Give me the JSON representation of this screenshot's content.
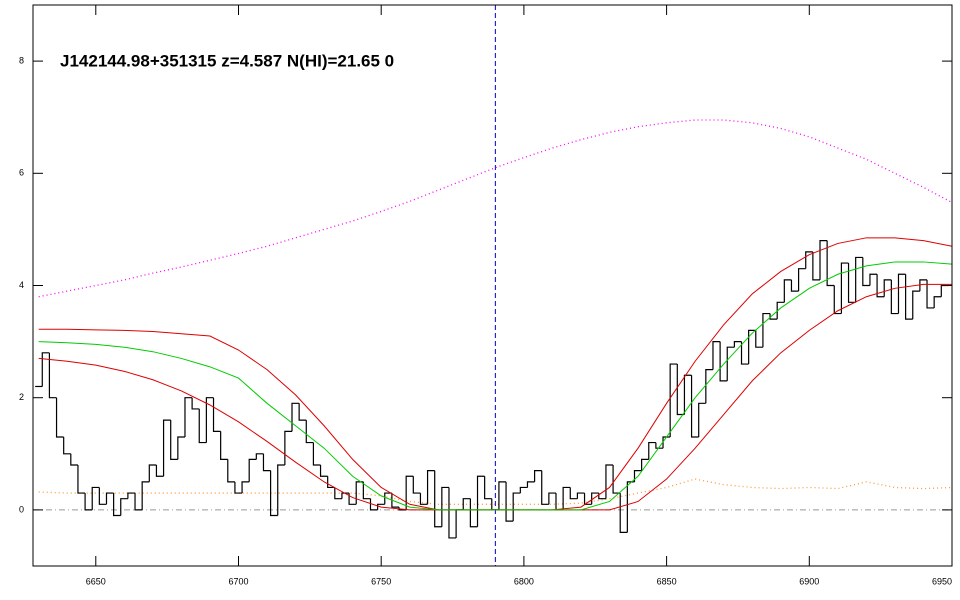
{
  "chart_data": {
    "type": "line",
    "title": "J142144.98+351315 z=4.587 N(HI)=21.65 0",
    "xlim": [
      6628,
      6950
    ],
    "ylim": [
      -1,
      9
    ],
    "xticks": [
      6650,
      6700,
      6750,
      6800,
      6850,
      6900,
      6950
    ],
    "yticks": [
      0,
      2,
      4,
      6,
      8
    ],
    "reference_lines": [
      {
        "axis": "y",
        "value": 0,
        "color": "#999999",
        "style": "dashdot"
      },
      {
        "axis": "x",
        "value": 6790,
        "color": "#0000cc",
        "style": "dashed"
      }
    ],
    "series": [
      {
        "color": "#ff00ff",
        "style": "dotted",
        "x": [
          6630,
          6640,
          6650,
          6660,
          6670,
          6680,
          6690,
          6700,
          6710,
          6720,
          6730,
          6740,
          6750,
          6760,
          6770,
          6780,
          6790,
          6800,
          6810,
          6820,
          6830,
          6840,
          6850,
          6860,
          6870,
          6880,
          6890,
          6900,
          6910,
          6920,
          6930,
          6940,
          6950
        ],
        "values": [
          3.8,
          3.9,
          4.0,
          4.1,
          4.22,
          4.33,
          4.45,
          4.57,
          4.7,
          4.85,
          5.0,
          5.15,
          5.32,
          5.5,
          5.7,
          5.9,
          6.1,
          6.28,
          6.45,
          6.6,
          6.73,
          6.83,
          6.9,
          6.95,
          6.95,
          6.9,
          6.8,
          6.65,
          6.45,
          6.25,
          6.0,
          5.75,
          5.48
        ]
      },
      {
        "color": "#ff9933",
        "style": "dotted",
        "x": [
          6630,
          6640,
          6650,
          6660,
          6670,
          6680,
          6690,
          6700,
          6710,
          6720,
          6730,
          6740,
          6750,
          6760,
          6770,
          6780,
          6790,
          6800,
          6810,
          6820,
          6830,
          6840,
          6850,
          6860,
          6870,
          6880,
          6890,
          6900,
          6910,
          6920,
          6930,
          6940,
          6950
        ],
        "values": [
          0.32,
          0.3,
          0.3,
          0.3,
          0.3,
          0.3,
          0.3,
          0.3,
          0.3,
          0.3,
          0.3,
          0.3,
          0.25,
          0.15,
          0.1,
          0.1,
          0.1,
          0.1,
          0.1,
          0.12,
          0.2,
          0.3,
          0.4,
          0.55,
          0.45,
          0.4,
          0.38,
          0.4,
          0.38,
          0.5,
          0.4,
          0.38,
          0.4
        ]
      },
      {
        "color": "#000000",
        "style": "step",
        "x": [
          6630,
          6632.5,
          6635,
          6637.5,
          6640,
          6642.5,
          6645,
          6647.5,
          6650,
          6652.5,
          6655,
          6657.5,
          6660,
          6662.5,
          6665,
          6667.5,
          6670,
          6672.5,
          6675,
          6677.5,
          6680,
          6682.5,
          6685,
          6687.5,
          6690,
          6692.5,
          6695,
          6697.5,
          6700,
          6702.5,
          6705,
          6707.5,
          6710,
          6712.5,
          6715,
          6717.5,
          6720,
          6722.5,
          6725,
          6727.5,
          6730,
          6732.5,
          6735,
          6737.5,
          6740,
          6742.5,
          6745,
          6747.5,
          6750,
          6752.5,
          6755,
          6757.5,
          6760,
          6762.5,
          6765,
          6767.5,
          6770,
          6772.5,
          6775,
          6777.5,
          6780,
          6782.5,
          6785,
          6787.5,
          6790,
          6792.5,
          6795,
          6797.5,
          6800,
          6802.5,
          6805,
          6807.5,
          6810,
          6812.5,
          6815,
          6817.5,
          6820,
          6822.5,
          6825,
          6827.5,
          6830,
          6832.5,
          6835,
          6837.5,
          6840,
          6842.5,
          6845,
          6847.5,
          6850,
          6852.5,
          6855,
          6857.5,
          6860,
          6862.5,
          6865,
          6867.5,
          6870,
          6872.5,
          6875,
          6877.5,
          6880,
          6882.5,
          6885,
          6887.5,
          6890,
          6892.5,
          6895,
          6897.5,
          6900,
          6902.5,
          6905,
          6907.5,
          6910,
          6912.5,
          6915,
          6917.5,
          6920,
          6922.5,
          6925,
          6927.5,
          6930,
          6932.5,
          6935,
          6937.5,
          6940,
          6942.5,
          6945,
          6947.5
        ],
        "values": [
          2.2,
          2.8,
          2.0,
          1.3,
          1.0,
          0.8,
          0.3,
          0.0,
          0.4,
          0.1,
          0.3,
          -0.1,
          0.2,
          0.3,
          0.0,
          0.5,
          0.8,
          0.6,
          1.6,
          0.9,
          1.3,
          2.0,
          1.8,
          1.2,
          2.0,
          1.4,
          0.9,
          0.5,
          0.3,
          0.5,
          0.9,
          1.0,
          0.7,
          -0.1,
          0.8,
          1.4,
          1.9,
          1.6,
          1.2,
          0.8,
          0.6,
          0.4,
          0.2,
          0.3,
          0.1,
          0.5,
          0.2,
          0.0,
          0.1,
          0.3,
          0.05,
          0.0,
          0.6,
          0.3,
          0.1,
          0.7,
          -0.3,
          0.4,
          -0.5,
          0.0,
          0.2,
          -0.3,
          0.6,
          0.2,
          0.0,
          0.5,
          -0.2,
          0.3,
          0.4,
          0.5,
          0.7,
          0.1,
          0.3,
          0.0,
          0.4,
          0.2,
          0.3,
          0.1,
          0.3,
          0.2,
          0.8,
          0.3,
          -0.4,
          0.5,
          0.7,
          0.9,
          1.2,
          1.1,
          1.3,
          2.6,
          1.7,
          2.4,
          1.3,
          1.9,
          2.5,
          3.0,
          2.3,
          2.9,
          3.0,
          2.6,
          3.2,
          2.9,
          3.5,
          3.4,
          3.7,
          4.1,
          3.9,
          4.3,
          4.6,
          4.1,
          4.8,
          4.0,
          3.5,
          4.4,
          3.7,
          4.5,
          4.0,
          4.2,
          3.8,
          4.1,
          3.5,
          4.2,
          3.4,
          3.9,
          4.1,
          3.6,
          3.8,
          4.0
        ]
      },
      {
        "color": "#dd0000",
        "style": "solid",
        "x": [
          6630,
          6640,
          6650,
          6660,
          6670,
          6680,
          6690,
          6700,
          6710,
          6720,
          6730,
          6740,
          6750,
          6760,
          6770,
          6780,
          6790,
          6800,
          6810,
          6820,
          6830,
          6840,
          6850,
          6860,
          6870,
          6880,
          6890,
          6900,
          6910,
          6920,
          6930,
          6940,
          6950
        ],
        "values": [
          3.22,
          3.22,
          3.21,
          3.2,
          3.18,
          3.14,
          3.1,
          2.85,
          2.5,
          2.05,
          1.5,
          0.9,
          0.4,
          0.1,
          0.0,
          0.0,
          0.0,
          0.0,
          0.0,
          0.05,
          0.4,
          1.1,
          1.9,
          2.65,
          3.3,
          3.85,
          4.25,
          4.55,
          4.75,
          4.85,
          4.85,
          4.8,
          4.7
        ]
      },
      {
        "color": "#dd0000",
        "style": "solid",
        "x": [
          6630,
          6640,
          6650,
          6660,
          6670,
          6680,
          6690,
          6700,
          6710,
          6720,
          6730,
          6740,
          6750,
          6760,
          6770,
          6780,
          6790,
          6800,
          6810,
          6820,
          6830,
          6840,
          6850,
          6860,
          6870,
          6880,
          6890,
          6900,
          6910,
          6920,
          6930,
          6940,
          6950
        ],
        "values": [
          2.7,
          2.65,
          2.58,
          2.47,
          2.32,
          2.12,
          1.87,
          1.57,
          1.22,
          0.85,
          0.5,
          0.22,
          0.05,
          0.0,
          0.0,
          0.0,
          0.0,
          0.0,
          0.0,
          0.0,
          0.0,
          0.15,
          0.55,
          1.1,
          1.7,
          2.3,
          2.8,
          3.2,
          3.55,
          3.8,
          3.95,
          4.02,
          4.02
        ]
      },
      {
        "color": "#00cc00",
        "style": "solid",
        "x": [
          6630,
          6640,
          6650,
          6660,
          6670,
          6680,
          6690,
          6700,
          6710,
          6720,
          6730,
          6740,
          6750,
          6760,
          6770,
          6780,
          6790,
          6800,
          6810,
          6820,
          6830,
          6840,
          6850,
          6860,
          6870,
          6880,
          6890,
          6900,
          6910,
          6920,
          6930,
          6940,
          6950
        ],
        "values": [
          3.0,
          2.98,
          2.95,
          2.9,
          2.82,
          2.7,
          2.55,
          2.35,
          1.9,
          1.5,
          1.1,
          0.6,
          0.25,
          0.05,
          0.0,
          0.0,
          0.0,
          0.0,
          0.0,
          0.0,
          0.15,
          0.6,
          1.3,
          2.0,
          2.6,
          3.15,
          3.6,
          3.95,
          4.2,
          4.35,
          4.42,
          4.42,
          4.38
        ]
      }
    ]
  }
}
